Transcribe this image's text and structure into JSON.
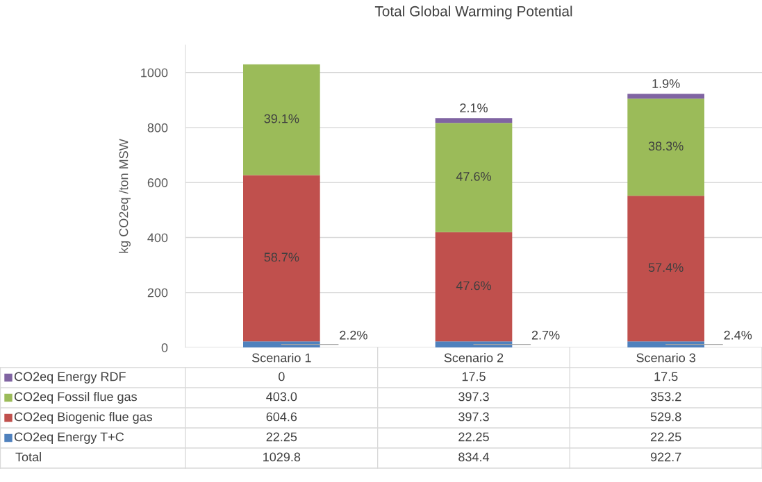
{
  "chart_data": {
    "type": "bar",
    "title": "Total Global Warming Potential",
    "ylabel": "kg CO2eq /ton MSW",
    "categories": [
      "Scenario 1",
      "Scenario 2",
      "Scenario 3"
    ],
    "stacked": true,
    "ylim": [
      0,
      1100
    ],
    "yticks": [
      0,
      200,
      400,
      600,
      800,
      1000
    ],
    "grid": "y",
    "legend": "bottom",
    "series": [
      {
        "name": "CO2eq Energy T+C",
        "color": "#4f81bd",
        "values": [
          22.25,
          22.25,
          22.25
        ],
        "value_labels": [
          "22.25",
          "22.25",
          "22.25"
        ]
      },
      {
        "name": "CO2eq Biogenic flue gas",
        "color": "#c0504d",
        "values": [
          604.6,
          397.3,
          529.8
        ],
        "value_labels": [
          "604.6",
          "397.3",
          "529.8"
        ]
      },
      {
        "name": "CO2eq Fossil flue gas",
        "color": "#9bbb59",
        "values": [
          403.0,
          397.3,
          353.2
        ],
        "value_labels": [
          "403.0",
          "397.3",
          "353.2"
        ]
      },
      {
        "name": "CO2eq Energy RDF",
        "color": "#8064a2",
        "values": [
          0,
          17.5,
          17.5
        ],
        "value_labels": [
          "0",
          "17.5",
          "17.5"
        ]
      }
    ],
    "annotations": [
      {
        "text": "2.2%",
        "x": "Scenario 1",
        "y": 11
      },
      "58.7%",
      "39.1%",
      {
        "text": "2.7%",
        "x": "Scenario 2",
        "y": 11
      },
      "47.6%",
      "47.6%",
      "2.1%",
      {
        "text": "2.4%",
        "x": "Scenario 3",
        "y": 11
      },
      "57.4%",
      "38.3%",
      "1.9%",
      "Total",
      "1029.8",
      "834.4",
      "922.7"
    ]
  }
}
